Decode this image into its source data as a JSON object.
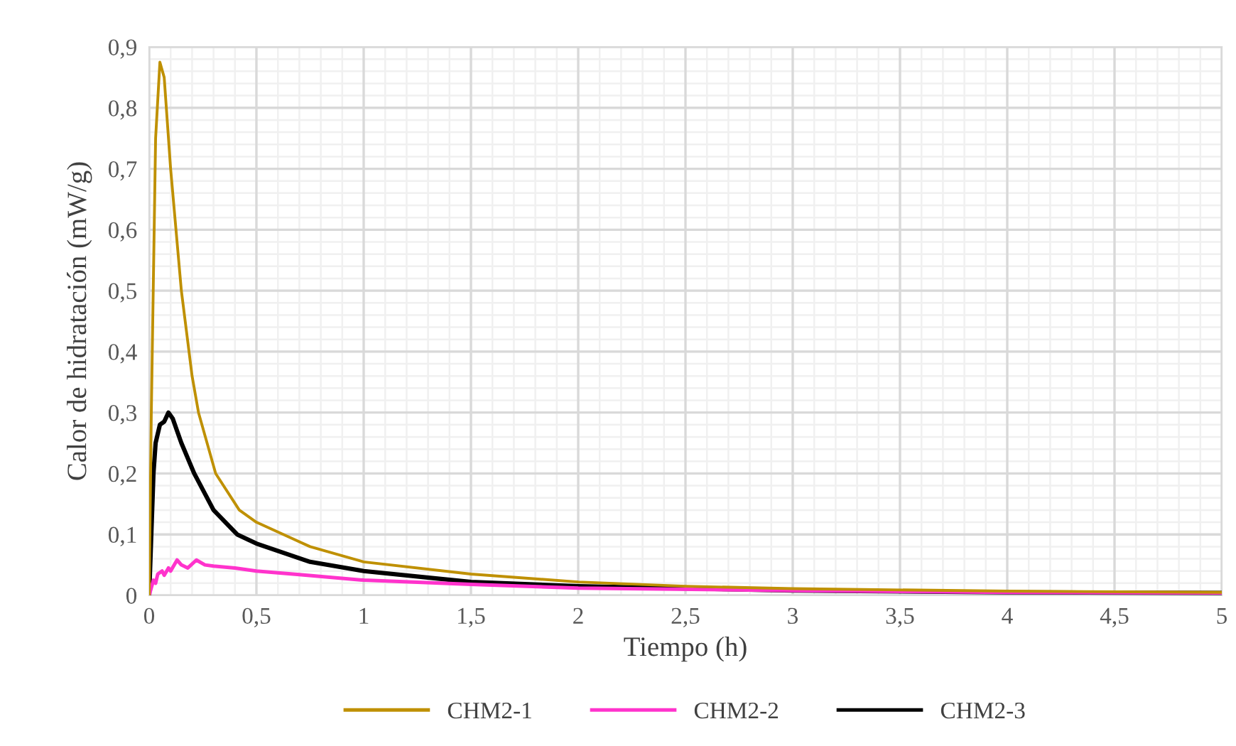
{
  "chart_data": {
    "type": "line",
    "xlabel": "Tiempo (h)",
    "ylabel": "Calor de hidratación (mW/g)",
    "xlim": [
      0,
      5
    ],
    "ylim": [
      0,
      0.9
    ],
    "xticks": [
      0,
      {
        "value": 0.5,
        "label": "0,5"
      },
      1,
      {
        "value": 1.5,
        "label": "1,5"
      },
      2,
      {
        "value": 2.5,
        "label": "2,5"
      },
      3,
      {
        "value": 3.5,
        "label": "3,5"
      },
      4,
      {
        "value": 4.5,
        "label": "4,5"
      },
      5
    ],
    "yticks": [
      0,
      {
        "value": 0.1,
        "label": "0,1"
      },
      {
        "value": 0.2,
        "label": "0,2"
      },
      {
        "value": 0.3,
        "label": "0,3"
      },
      {
        "value": 0.4,
        "label": "0,4"
      },
      {
        "value": 0.5,
        "label": "0,5"
      },
      {
        "value": 0.6,
        "label": "0,6"
      },
      {
        "value": 0.7,
        "label": "0,7"
      },
      {
        "value": 0.8,
        "label": "0,8"
      },
      {
        "value": 0.9,
        "label": "0,9"
      }
    ],
    "grid": true,
    "legend": "bottom",
    "marker": "none",
    "line_style": "solid",
    "series": [
      {
        "name": "CHM2-1",
        "color": "#bf9000",
        "x": [
          0,
          0.01,
          0.03,
          0.05,
          0.07,
          0.1,
          0.15,
          0.2,
          0.23,
          0.31,
          0.42,
          0.5,
          0.75,
          1,
          1.5,
          2,
          2.5,
          3,
          4,
          5
        ],
        "values": [
          0,
          0.3,
          0.75,
          0.875,
          0.85,
          0.7,
          0.5,
          0.36,
          0.3,
          0.2,
          0.14,
          0.12,
          0.08,
          0.055,
          0.035,
          0.022,
          0.015,
          0.011,
          0.007,
          0.005
        ]
      },
      {
        "name": "CHM2-2",
        "color": "#ff33cc",
        "x": [
          0,
          0.02,
          0.03,
          0.04,
          0.06,
          0.07,
          0.09,
          0.1,
          0.13,
          0.15,
          0.18,
          0.22,
          0.26,
          0.3,
          0.4,
          0.5,
          0.7,
          1,
          1.5,
          2,
          3,
          4,
          5
        ],
        "values": [
          0,
          0.025,
          0.02,
          0.035,
          0.04,
          0.033,
          0.045,
          0.04,
          0.058,
          0.05,
          0.045,
          0.058,
          0.05,
          0.048,
          0.045,
          0.04,
          0.034,
          0.025,
          0.018,
          0.012,
          0.008,
          0.005,
          0.004
        ]
      },
      {
        "name": "CHM2-3",
        "color": "#000000",
        "x": [
          0,
          0.02,
          0.03,
          0.05,
          0.07,
          0.09,
          0.11,
          0.13,
          0.15,
          0.21,
          0.3,
          0.41,
          0.5,
          0.75,
          1,
          1.5,
          2,
          3,
          4,
          5
        ],
        "values": [
          0,
          0.2,
          0.25,
          0.28,
          0.285,
          0.3,
          0.29,
          0.27,
          0.25,
          0.2,
          0.14,
          0.1,
          0.085,
          0.055,
          0.04,
          0.022,
          0.015,
          0.008,
          0.005,
          0.004
        ]
      }
    ]
  }
}
